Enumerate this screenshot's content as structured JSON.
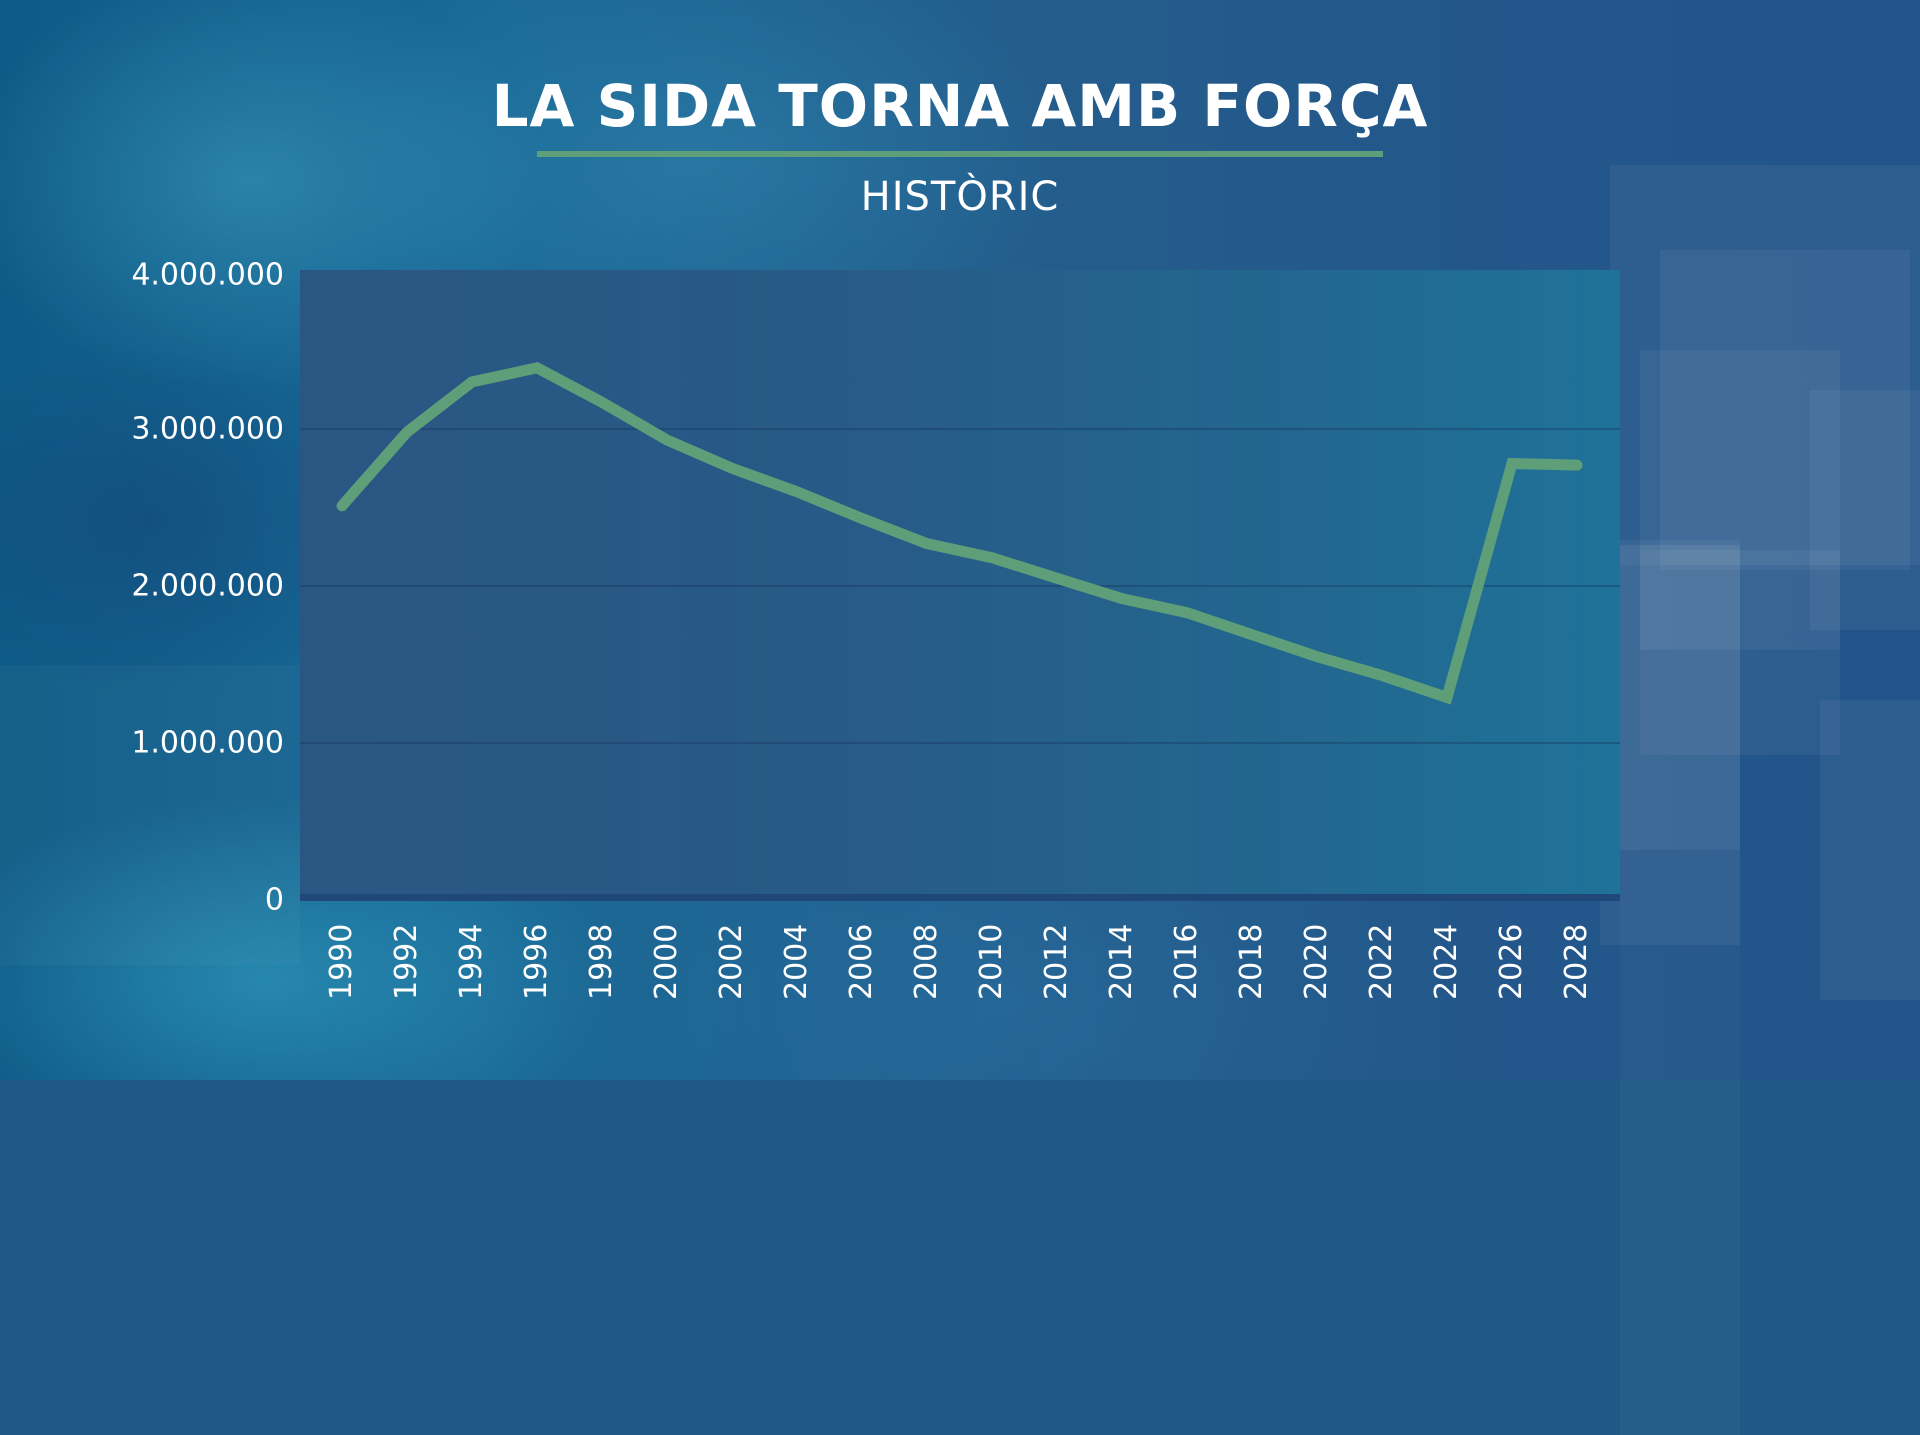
{
  "header": {
    "title": "LA SIDA TORNA AMB FORÇA",
    "subtitle": "HISTÒRIC"
  },
  "colors": {
    "line": "#5e9e78",
    "underline": "#5e9e78",
    "plot_bg": "#285a87",
    "text": "#ffffff"
  },
  "axis": {
    "y_ticks": [
      "4.000.000",
      "3.000.000",
      "2.000.000",
      "1.000.000",
      "0"
    ],
    "x_ticks": [
      "1990",
      "1992",
      "1994",
      "1996",
      "1998",
      "2000",
      "2002",
      "2004",
      "2006",
      "2008",
      "2010",
      "2012",
      "2014",
      "2016",
      "2018",
      "2020",
      "2022",
      "2024",
      "2026",
      "2028"
    ]
  },
  "chart_data": {
    "type": "line",
    "title": "LA SIDA TORNA AMB FORÇA",
    "subtitle": "HISTÒRIC",
    "xlabel": "",
    "ylabel": "",
    "ylim": [
      0,
      4000000
    ],
    "grid": true,
    "legend": "none",
    "categories": [
      "1990",
      "1992",
      "1994",
      "1996",
      "1998",
      "2000",
      "2002",
      "2004",
      "2006",
      "2008",
      "2010",
      "2012",
      "2014",
      "2016",
      "2018",
      "2020",
      "2022",
      "2024",
      "2026",
      "2028"
    ],
    "series": [
      {
        "name": "",
        "values": [
          2510000,
          2980000,
          3300000,
          3390000,
          3170000,
          2930000,
          2750000,
          2600000,
          2430000,
          2270000,
          2180000,
          2050000,
          1920000,
          1830000,
          1690000,
          1550000,
          1430000,
          1290000,
          2780000,
          2770000
        ]
      }
    ]
  }
}
